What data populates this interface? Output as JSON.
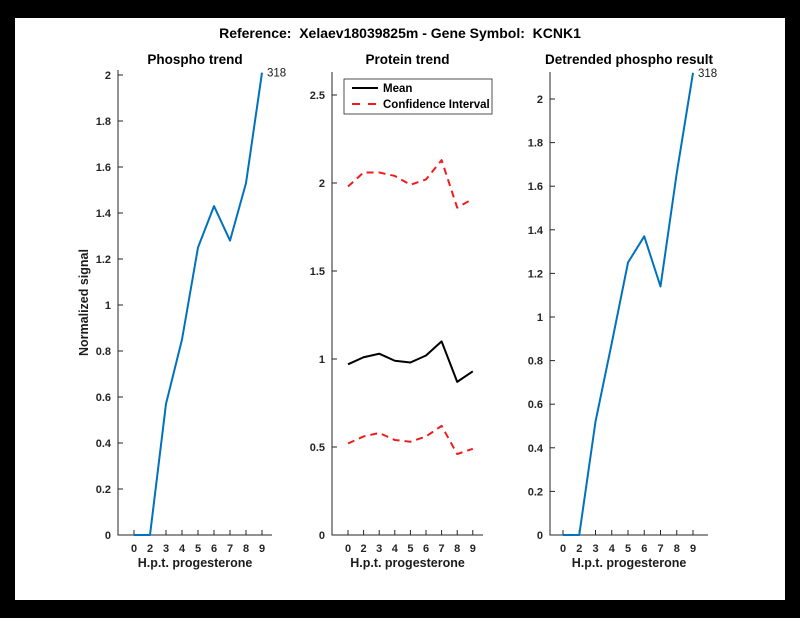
{
  "figure": {
    "title": "Reference:  Xelaev18039825m - Gene Symbol:  KCNK1"
  },
  "colors": {
    "background": "#000000",
    "canvas": "#ffffff",
    "axis": "#252525",
    "blue": "#0072BD",
    "red": "#F21B1B",
    "black": "#000000"
  },
  "chart_data": [
    {
      "type": "line",
      "title": "Phospho trend",
      "xlabel": "H.p.t. progesterone",
      "ylabel": "Normalized signal",
      "x": [
        0,
        2,
        3,
        4,
        5,
        6,
        7,
        8,
        9
      ],
      "x_ticklabels": [
        "0",
        "2",
        "3",
        "4",
        "5",
        "6",
        "7",
        "8",
        "9"
      ],
      "y_ticks": [
        {
          "v": 0,
          "label": "0"
        },
        {
          "v": 0.2,
          "label": "0.2"
        },
        {
          "v": 0.4,
          "label": "0.4"
        },
        {
          "v": 0.6,
          "label": "0.6"
        },
        {
          "v": 0.8,
          "label": "0.8"
        },
        {
          "v": 1,
          "label": "1"
        },
        {
          "v": 1.2,
          "label": "1.2"
        },
        {
          "v": 1.4,
          "label": "1.4"
        },
        {
          "v": 1.6,
          "label": "1.6"
        },
        {
          "v": 1.8,
          "label": "1.8"
        },
        {
          "v": 2,
          "label": "2"
        }
      ],
      "ylim": [
        0,
        2.02
      ],
      "grid": false,
      "legend": null,
      "end_label": "318",
      "series": [
        {
          "name": "Phospho signal",
          "color": "blue",
          "style": "solid",
          "values": [
            0,
            0,
            0.57,
            0.85,
            1.25,
            1.43,
            1.28,
            1.53,
            2.01
          ]
        }
      ]
    },
    {
      "type": "line",
      "title": "Protein trend",
      "xlabel": "H.p.t. progesterone",
      "ylabel": "",
      "x": [
        0,
        2,
        3,
        4,
        5,
        6,
        7,
        8,
        9
      ],
      "x_ticklabels": [
        "0",
        "2",
        "3",
        "4",
        "5",
        "6",
        "7",
        "8",
        "9"
      ],
      "y_ticks": [
        {
          "v": 0,
          "label": "0"
        },
        {
          "v": 0.5,
          "label": "0.5"
        },
        {
          "v": 1,
          "label": "1"
        },
        {
          "v": 1.5,
          "label": "1.5"
        },
        {
          "v": 2,
          "label": "2"
        },
        {
          "v": 2.5,
          "label": "2.5"
        }
      ],
      "ylim": [
        0,
        2.63
      ],
      "grid": false,
      "end_label": null,
      "legend": {
        "position": "top-left",
        "entries": [
          {
            "label": "Mean",
            "color": "black",
            "style": "solid"
          },
          {
            "label": "Confidence Interval",
            "color": "red",
            "style": "dashed"
          }
        ]
      },
      "series": [
        {
          "name": "Mean",
          "color": "black",
          "style": "solid",
          "values": [
            0.97,
            1.01,
            1.03,
            0.99,
            0.98,
            1.02,
            1.1,
            0.87,
            0.93
          ]
        },
        {
          "name": "Confidence Interval upper",
          "color": "red",
          "style": "dashed",
          "values": [
            1.98,
            2.06,
            2.06,
            2.04,
            1.99,
            2.02,
            2.13,
            1.86,
            1.91
          ]
        },
        {
          "name": "Confidence Interval lower",
          "color": "red",
          "style": "dashed",
          "values": [
            0.52,
            0.56,
            0.58,
            0.54,
            0.53,
            0.56,
            0.62,
            0.46,
            0.49
          ]
        }
      ]
    },
    {
      "type": "line",
      "title": "Detrended phospho result",
      "xlabel": "H.p.t. progesterone",
      "ylabel": "",
      "x": [
        0,
        2,
        3,
        4,
        5,
        6,
        7,
        8,
        9
      ],
      "x_ticklabels": [
        "0",
        "2",
        "3",
        "4",
        "5",
        "6",
        "7",
        "8",
        "9"
      ],
      "y_ticks": [
        {
          "v": 0,
          "label": "0"
        },
        {
          "v": 0.2,
          "label": "0.2"
        },
        {
          "v": 0.4,
          "label": "0.4"
        },
        {
          "v": 0.6,
          "label": "0.6"
        },
        {
          "v": 0.8,
          "label": "0.8"
        },
        {
          "v": 1,
          "label": "1"
        },
        {
          "v": 1.2,
          "label": "1.2"
        },
        {
          "v": 1.4,
          "label": "1.4"
        },
        {
          "v": 1.6,
          "label": "1.6"
        },
        {
          "v": 1.8,
          "label": "1.8"
        },
        {
          "v": 2,
          "label": "2"
        }
      ],
      "ylim": [
        0,
        2.12
      ],
      "grid": false,
      "legend": null,
      "end_label": "318",
      "series": [
        {
          "name": "Detrended phospho",
          "color": "blue",
          "style": "solid",
          "values": [
            0,
            0,
            0.52,
            0.88,
            1.25,
            1.37,
            1.14,
            1.66,
            2.12
          ]
        }
      ]
    }
  ]
}
